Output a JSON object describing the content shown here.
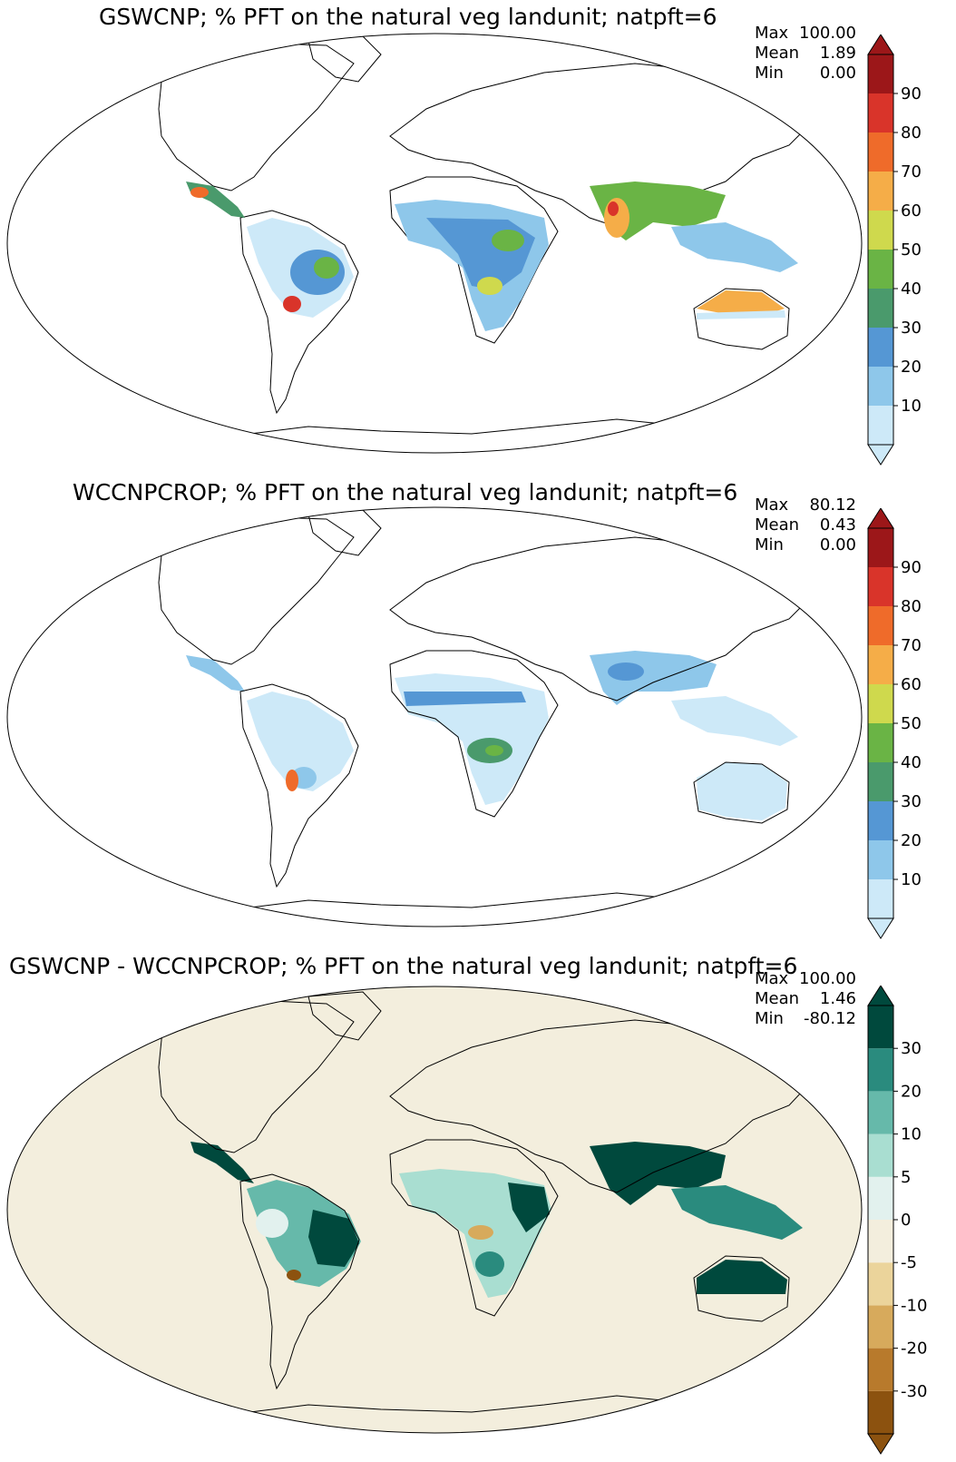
{
  "panels": [
    {
      "title": "GSWCNP; % PFT on the natural veg landunit; natpft=6",
      "stats": [
        {
          "label": "Max",
          "value": "100.00"
        },
        {
          "label": "Mean",
          "value": "1.89"
        },
        {
          "label": "Min",
          "value": "0.00"
        }
      ],
      "colorbar": {
        "ticks": [
          "10",
          "20",
          "30",
          "40",
          "50",
          "60",
          "70",
          "80",
          "90"
        ],
        "colors": [
          "#cde9f8",
          "#8ec7ea",
          "#5597d4",
          "#4a9a6c",
          "#6ab445",
          "#cfd94d",
          "#f5ad48",
          "#ef6b2a",
          "#d9342a",
          "#9c1719"
        ]
      },
      "background": "#ffffff"
    },
    {
      "title": "WCCNPCROP; % PFT on the natural veg landunit; natpft=6",
      "stats": [
        {
          "label": "Max",
          "value": "80.12"
        },
        {
          "label": "Mean",
          "value": "0.43"
        },
        {
          "label": "Min",
          "value": "0.00"
        }
      ],
      "colorbar": {
        "ticks": [
          "10",
          "20",
          "30",
          "40",
          "50",
          "60",
          "70",
          "80",
          "90"
        ],
        "colors": [
          "#cde9f8",
          "#8ec7ea",
          "#5597d4",
          "#4a9a6c",
          "#6ab445",
          "#cfd94d",
          "#f5ad48",
          "#ef6b2a",
          "#d9342a",
          "#9c1719"
        ]
      },
      "background": "#ffffff"
    },
    {
      "title": "GSWCNP - WCCNPCROP; % PFT on the natural veg landunit; natpft=6",
      "stats": [
        {
          "label": "Max",
          "value": "100.00"
        },
        {
          "label": "Mean",
          "value": "1.46"
        },
        {
          "label": "Min",
          "value": "-80.12"
        }
      ],
      "colorbar": {
        "ticks": [
          "-30",
          "-20",
          "-10",
          "-5",
          "0",
          "5",
          "10",
          "20",
          "30"
        ],
        "colors": [
          "#8c520f",
          "#b87a2c",
          "#d7aa5c",
          "#ebd49b",
          "#f3eedd",
          "#e2f1ee",
          "#a9ded1",
          "#66b9aa",
          "#2a8b7e",
          "#00493d"
        ]
      },
      "background": "#f3eedd"
    }
  ]
}
